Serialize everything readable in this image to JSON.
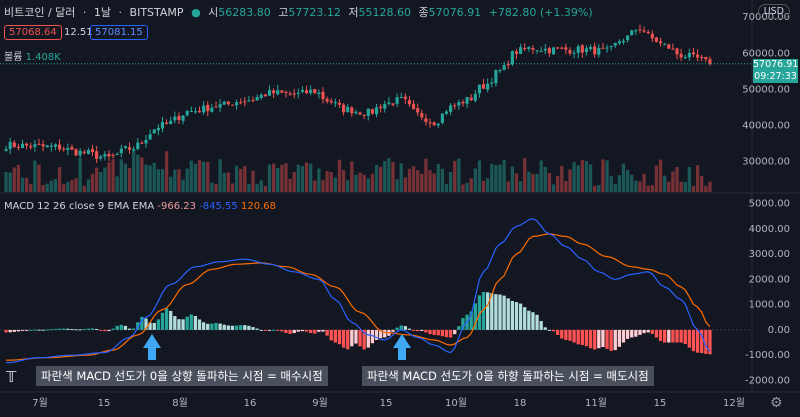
{
  "header": {
    "symbol": "비트코인 / 달러",
    "interval": "1날",
    "exchange": "BITSTAMP",
    "open_label": "시",
    "open": "56283.80",
    "high_label": "고",
    "high": "57723.12",
    "low_label": "저",
    "low": "55128.60",
    "close_label": "종",
    "close": "57076.91",
    "change": "+782.80 (+1.39%)",
    "bid": "57068.64",
    "spread": "12.51",
    "ask": "57081.15",
    "volume_label": "볼륨",
    "volume": "1.408K"
  },
  "currency_button": "USD",
  "price_tag": {
    "value": "57076.91",
    "time": "09:27:33"
  },
  "macd_legend": {
    "label": "MACD 12 26 close 9 EMA EMA",
    "hist": "-966.23",
    "macd": "-845.55",
    "signal": "120.68"
  },
  "annotations": {
    "buy": "파란색 MACD 선도가 0을 상향 돌파하는 시점 = 매수시점",
    "sell": "파란색 MACD 선도가 0을 하향 돌파하는 시점 = 매도시점"
  },
  "colors": {
    "up": "#26a69a",
    "down": "#ef5350",
    "macd": "#2962ff",
    "signal": "#ff6d00",
    "arrow": "#3fa9f5"
  },
  "chart_data": [
    {
      "type": "candlestick",
      "x_ticks": [
        "7월",
        "15",
        "8월",
        "16",
        "9월",
        "15",
        "10월",
        "18",
        "11월",
        "15",
        "12월"
      ],
      "y_ticks": [
        70000,
        60000,
        50000,
        40000,
        30000
      ],
      "ylim": [
        24000,
        72000
      ],
      "anchors": [
        [
          0,
          34500
        ],
        [
          12,
          34000
        ],
        [
          18,
          32500
        ],
        [
          25,
          31000
        ],
        [
          30,
          33500
        ],
        [
          38,
          40000
        ],
        [
          45,
          44000
        ],
        [
          52,
          45500
        ],
        [
          58,
          47000
        ],
        [
          65,
          49000
        ],
        [
          70,
          48500
        ],
        [
          75,
          49500
        ],
        [
          78,
          47000
        ],
        [
          82,
          44500
        ],
        [
          88,
          43500
        ],
        [
          92,
          46000
        ],
        [
          96,
          47000
        ],
        [
          100,
          43000
        ],
        [
          104,
          41000
        ],
        [
          108,
          45000
        ],
        [
          112,
          47000
        ],
        [
          116,
          51000
        ],
        [
          120,
          55000
        ],
        [
          124,
          60500
        ],
        [
          128,
          61500
        ],
        [
          132,
          61000
        ],
        [
          140,
          61000
        ],
        [
          146,
          60500
        ],
        [
          150,
          64000
        ],
        [
          154,
          67000
        ],
        [
          157,
          64000
        ],
        [
          160,
          62000
        ],
        [
          164,
          59500
        ],
        [
          168,
          58500
        ],
        [
          171,
          57076.91
        ]
      ],
      "last_close": 57076.91
    },
    {
      "type": "bar",
      "name": "볼륨",
      "values_note": "daily volume bars"
    },
    {
      "type": "line",
      "name": "MACD 12 26 close 9 EMA EMA",
      "y_ticks": [
        5000,
        4000,
        3000,
        2000,
        1000,
        0,
        -1000,
        -2000
      ],
      "ylim": [
        -2300,
        5300
      ],
      "macd_anchors": [
        [
          0,
          -1300
        ],
        [
          8,
          -1100
        ],
        [
          16,
          -1000
        ],
        [
          24,
          -900
        ],
        [
          30,
          -300
        ],
        [
          34,
          500
        ],
        [
          40,
          1800
        ],
        [
          46,
          2500
        ],
        [
          52,
          2700
        ],
        [
          58,
          2800
        ],
        [
          64,
          2600
        ],
        [
          70,
          2300
        ],
        [
          76,
          2000
        ],
        [
          80,
          1200
        ],
        [
          84,
          300
        ],
        [
          88,
          -200
        ],
        [
          92,
          -400
        ],
        [
          96,
          0
        ],
        [
          100,
          -300
        ],
        [
          104,
          -600
        ],
        [
          108,
          -900
        ],
        [
          112,
          300
        ],
        [
          116,
          2300
        ],
        [
          120,
          3400
        ],
        [
          124,
          4100
        ],
        [
          128,
          4400
        ],
        [
          132,
          3800
        ],
        [
          136,
          3300
        ],
        [
          140,
          2800
        ],
        [
          144,
          2300
        ],
        [
          148,
          2000
        ],
        [
          152,
          2200
        ],
        [
          156,
          2300
        ],
        [
          160,
          1700
        ],
        [
          164,
          1200
        ],
        [
          168,
          0
        ],
        [
          171,
          -845.55
        ]
      ],
      "signal_anchors": [
        [
          0,
          -1200
        ],
        [
          10,
          -1100
        ],
        [
          20,
          -1000
        ],
        [
          26,
          -800
        ],
        [
          32,
          -200
        ],
        [
          38,
          800
        ],
        [
          44,
          1800
        ],
        [
          50,
          2400
        ],
        [
          56,
          2600
        ],
        [
          62,
          2650
        ],
        [
          68,
          2500
        ],
        [
          74,
          2200
        ],
        [
          80,
          1700
        ],
        [
          86,
          700
        ],
        [
          92,
          -100
        ],
        [
          98,
          -200
        ],
        [
          104,
          -400
        ],
        [
          108,
          -600
        ],
        [
          112,
          -300
        ],
        [
          116,
          800
        ],
        [
          120,
          2000
        ],
        [
          124,
          3000
        ],
        [
          128,
          3700
        ],
        [
          132,
          3800
        ],
        [
          136,
          3700
        ],
        [
          140,
          3400
        ],
        [
          146,
          2900
        ],
        [
          152,
          2500
        ],
        [
          156,
          2400
        ],
        [
          160,
          2200
        ],
        [
          164,
          1700
        ],
        [
          168,
          900
        ],
        [
          171,
          120.68
        ]
      ]
    }
  ]
}
